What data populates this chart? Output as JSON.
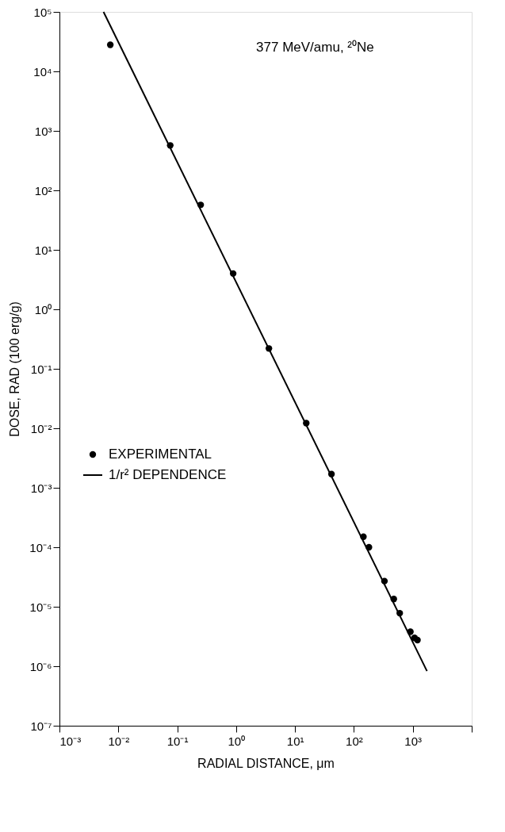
{
  "chart_data": {
    "type": "scatter",
    "xlabel": "RADIAL DISTANCE, μm",
    "ylabel": "DOSE, RAD (100 erg/g)",
    "annotations": [
      "377 MeV/amu, ²⁰Ne"
    ],
    "series": [
      {
        "name": "EXPERIMENTAL",
        "marker": "circle",
        "color": "#000000",
        "x": [
          0.0073,
          0.076,
          0.25,
          0.89,
          3.6,
          15.5,
          41.6,
          145,
          180,
          330,
          475,
          600,
          910,
          1070,
          1200
        ],
        "values": [
          28000,
          570,
          57,
          4.0,
          0.22,
          0.0122,
          0.0017,
          0.00015,
          0.0001,
          2.7e-05,
          1.35e-05,
          7.8e-06,
          3.8e-06,
          3e-06,
          2.75e-06
        ]
      },
      {
        "name": "1/r² DEPENDENCE",
        "type": "line",
        "marker": "none",
        "color": "#000000",
        "x": [
          0.0056,
          1740
        ],
        "values": [
          100000,
          8.3e-07
        ]
      }
    ],
    "log": "xy",
    "xlim": [
      0.001,
      10000
    ],
    "ylim": [
      1e-07,
      100000
    ],
    "xticks": [
      {
        "value": 0.001,
        "label": "10⁻³"
      },
      {
        "value": 0.01,
        "label": "10⁻²"
      },
      {
        "value": 0.1,
        "label": "10⁻¹"
      },
      {
        "value": 1,
        "label": "10⁰"
      },
      {
        "value": 10,
        "label": "10¹"
      },
      {
        "value": 100,
        "label": "10²"
      },
      {
        "value": 1000,
        "label": "10³"
      },
      {
        "value": 10000,
        "label": null
      }
    ],
    "yticks": [
      {
        "value": 1e-07,
        "label": "10⁻⁷"
      },
      {
        "value": 1e-06,
        "label": "10⁻⁶"
      },
      {
        "value": 1e-05,
        "label": "10⁻⁵"
      },
      {
        "value": 0.0001,
        "label": "10⁻⁴"
      },
      {
        "value": 0.001,
        "label": "10⁻³"
      },
      {
        "value": 0.01,
        "label": "10⁻²"
      },
      {
        "value": 0.1,
        "label": "10⁻¹"
      },
      {
        "value": 1,
        "label": "10⁰"
      },
      {
        "value": 10,
        "label": "10¹"
      },
      {
        "value": 100,
        "label": "10²"
      },
      {
        "value": 1000,
        "label": "10³"
      },
      {
        "value": 10000,
        "label": "10⁴"
      },
      {
        "value": 100000,
        "label": "10⁵"
      }
    ],
    "grid": false,
    "legend": "left",
    "line_style": "solid"
  }
}
